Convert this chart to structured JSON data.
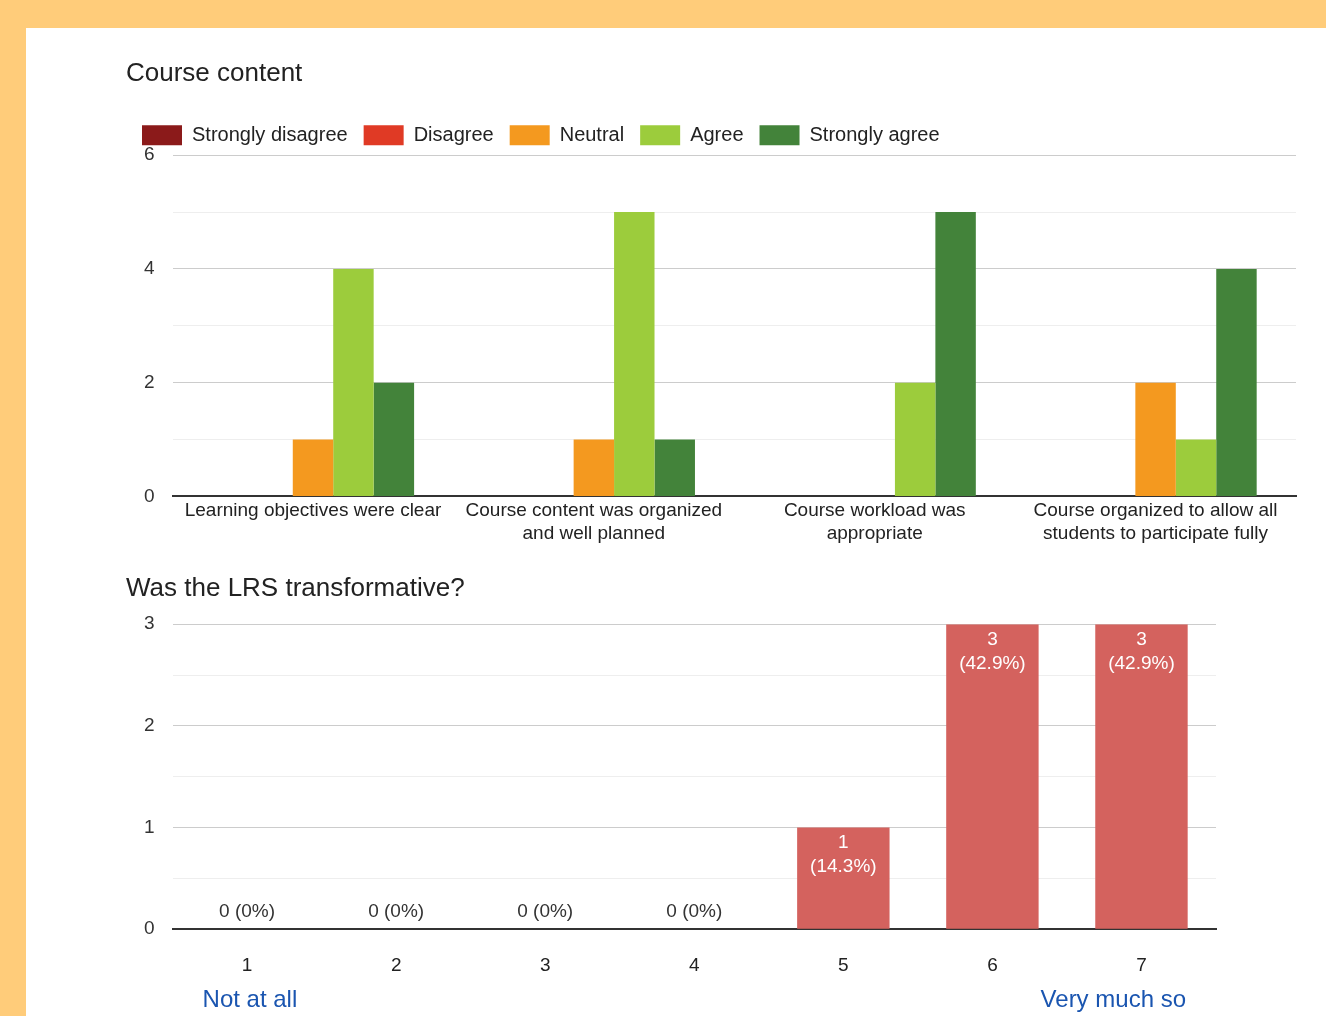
{
  "chart_data": [
    {
      "type": "bar",
      "title": "Course content",
      "categories": [
        "Learning objectives were clear",
        "Course content was organized and well planned",
        "Course workload was appropriate",
        "Course organized to allow all students to participate fully"
      ],
      "series": [
        {
          "name": "Strongly disagree",
          "color": "#8b1a1a",
          "values": [
            0,
            0,
            0,
            0
          ]
        },
        {
          "name": "Disagree",
          "color": "#e03a25",
          "values": [
            0,
            0,
            0,
            0
          ]
        },
        {
          "name": "Neutral",
          "color": "#f4991f",
          "values": [
            1,
            1,
            0,
            2
          ]
        },
        {
          "name": "Agree",
          "color": "#9ccc3c",
          "values": [
            4,
            5,
            2,
            1
          ]
        },
        {
          "name": "Strongly agree",
          "color": "#43833a",
          "values": [
            2,
            1,
            5,
            4
          ]
        }
      ],
      "ylim": [
        0,
        6
      ],
      "yticks": [
        0,
        {
          "value": 1,
          "label": null
        },
        2,
        {
          "value": 3,
          "label": null
        },
        4,
        {
          "value": 5,
          "label": null
        },
        6
      ],
      "grid": "y",
      "legend": "top"
    },
    {
      "type": "bar",
      "title": "Was the LRS transformative?",
      "categories": [
        "1",
        "2",
        "3",
        "4",
        "5",
        "6",
        "7"
      ],
      "values": [
        0,
        0,
        0,
        0,
        1,
        3,
        3
      ],
      "color": "#d4625e",
      "value_labels": [
        "0 (0%)",
        "0 (0%)",
        "0 (0%)",
        "0 (0%)",
        "1 (14.3%)",
        "3 (42.9%)",
        "3 (42.9%)"
      ],
      "ylim": [
        0,
        3
      ],
      "yticks": [
        0,
        {
          "value": 0.5,
          "label": null
        },
        1,
        {
          "value": 1.5,
          "label": null
        },
        2,
        {
          "value": 2.5,
          "label": null
        },
        3
      ],
      "grid": "y",
      "annotations": [
        "Not at all",
        "Very much so"
      ]
    }
  ]
}
